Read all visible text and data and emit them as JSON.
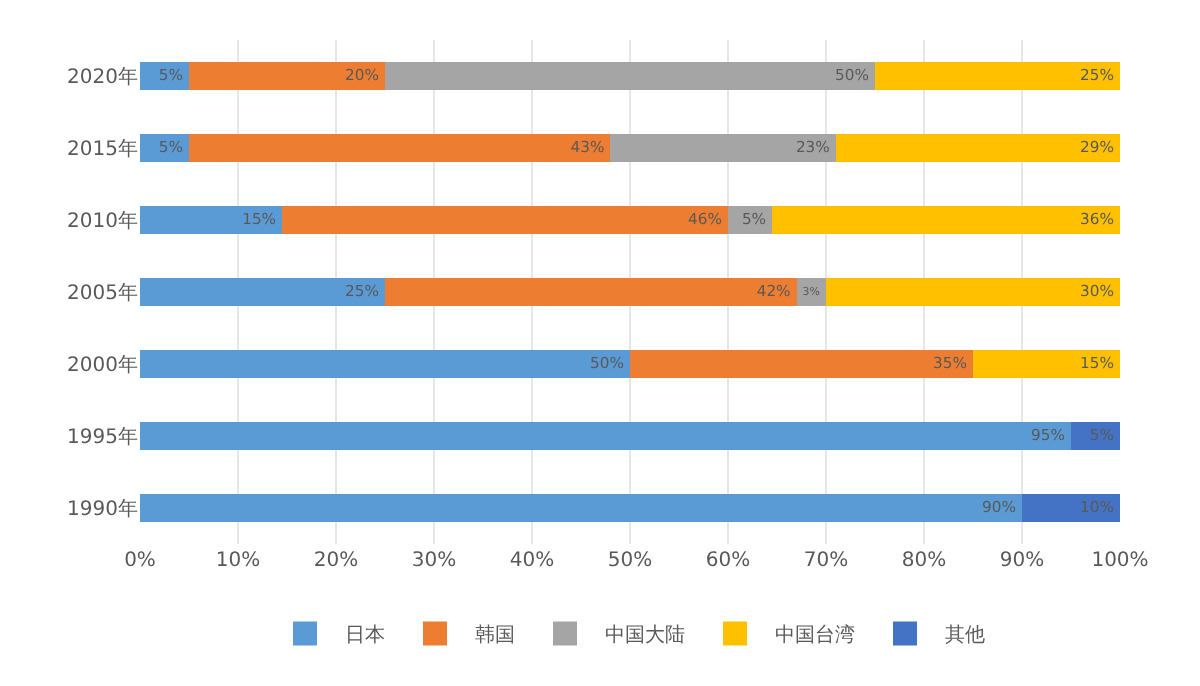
{
  "chart_data": {
    "type": "bar",
    "orientation": "horizontal",
    "stacked": true,
    "categories": [
      "2020年",
      "2015年",
      "2010年",
      "2005年",
      "2000年",
      "1995年",
      "1990年"
    ],
    "series": [
      {
        "name": "日本",
        "color": "#5b9bd5",
        "values": [
          5,
          5,
          14.5,
          25,
          50,
          95,
          90
        ],
        "value_labels": [
          "5%",
          "5%",
          "15%",
          "25%",
          "50%",
          "95%",
          "90%"
        ]
      },
      {
        "name": "韩国",
        "color": "#ed7d31",
        "values": [
          20,
          43,
          45.5,
          42,
          35,
          null,
          null
        ],
        "value_labels": [
          "20%",
          "43%",
          "46%",
          "42%",
          "35%",
          null,
          null
        ]
      },
      {
        "name": "中国大陆",
        "color": "#a5a5a5",
        "values": [
          50,
          23,
          4.5,
          3,
          null,
          null,
          null
        ],
        "value_labels": [
          "50%",
          "23%",
          "5%",
          "3%",
          null,
          null,
          null
        ]
      },
      {
        "name": "中国台湾",
        "color": "#ffc000",
        "values": [
          25,
          29,
          35.5,
          30,
          15,
          null,
          null
        ],
        "value_labels": [
          "25%",
          "29%",
          "36%",
          "30%",
          "15%",
          null,
          null
        ]
      },
      {
        "name": "其他",
        "color": "#4472c4",
        "values": [
          null,
          null,
          null,
          null,
          null,
          5,
          10
        ],
        "value_labels": [
          null,
          null,
          null,
          null,
          null,
          "5%",
          "10%"
        ]
      }
    ],
    "xlim": [
      0,
      100
    ],
    "xticks": [
      {
        "value": 0,
        "label": "0%"
      },
      {
        "value": 10,
        "label": "10%"
      },
      {
        "value": 20,
        "label": "20%"
      },
      {
        "value": 30,
        "label": "30%"
      },
      {
        "value": 40,
        "label": "40%"
      },
      {
        "value": 50,
        "label": "50%"
      },
      {
        "value": 60,
        "label": "60%"
      },
      {
        "value": 70,
        "label": "70%"
      },
      {
        "value": 80,
        "label": "80%"
      },
      {
        "value": 90,
        "label": "90%"
      },
      {
        "value": 100,
        "label": "100%"
      }
    ],
    "grid": "x",
    "legend": "bottom"
  }
}
